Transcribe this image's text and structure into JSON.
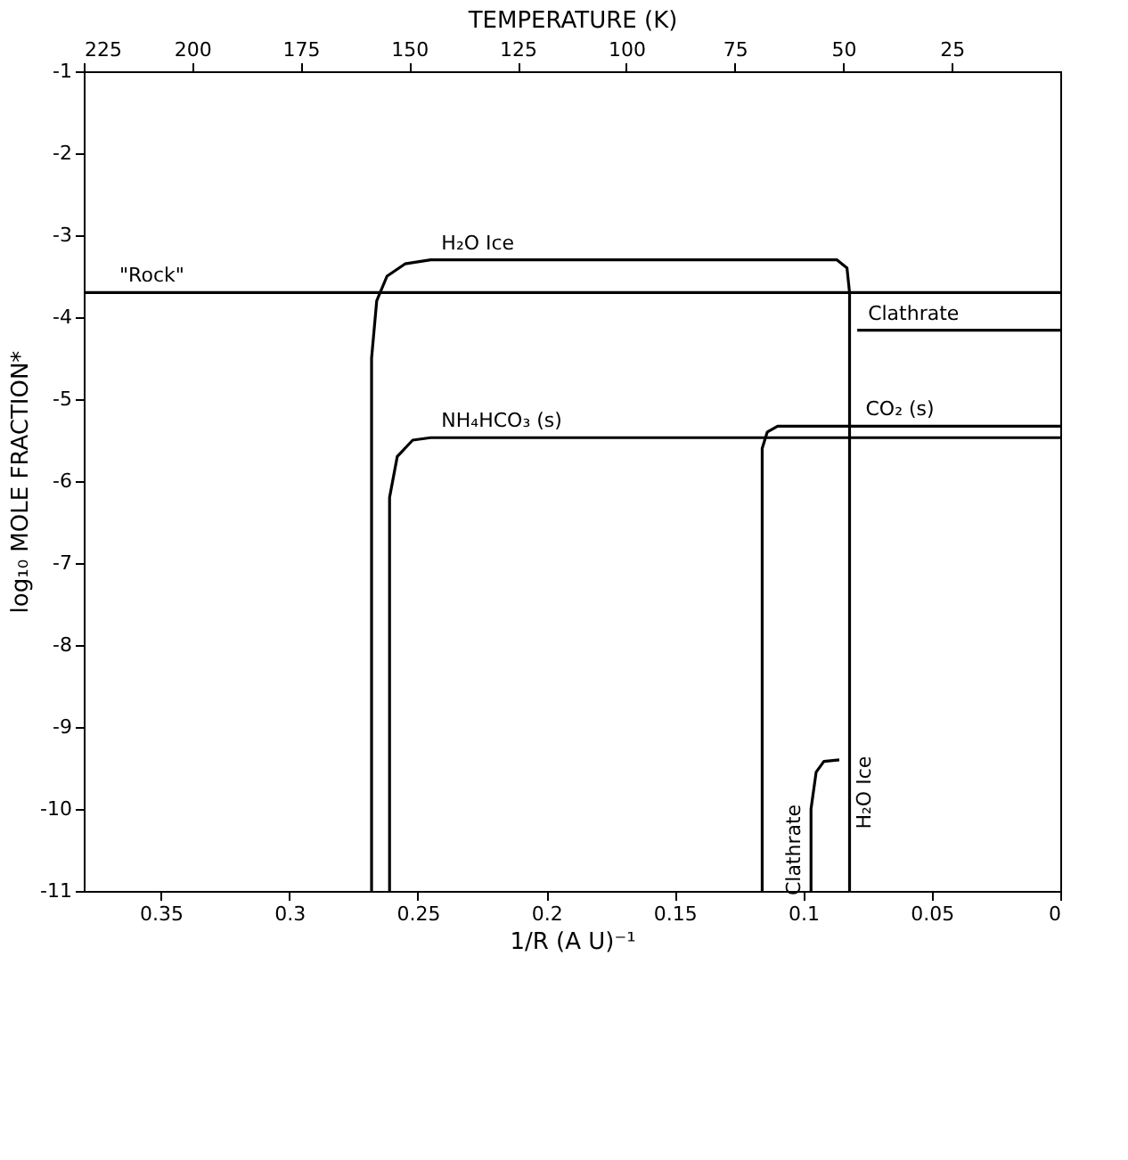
{
  "chart_data": {
    "type": "line",
    "xlabel": "1/R (A U)⁻¹",
    "ylabel": "log₁₀ MOLE FRACTION*",
    "x2label": "TEMPERATURE (K)",
    "xlim": [
      0.38,
      0
    ],
    "xticks": [
      0.35,
      0.3,
      0.25,
      0.2,
      0.15,
      0.1,
      0.05,
      0
    ],
    "ylim": [
      -11,
      -1
    ],
    "yticks": [
      -1,
      -2,
      -3,
      -4,
      -5,
      -6,
      -7,
      -8,
      -9,
      -10,
      -11
    ],
    "x2lim": [
      225,
      0
    ],
    "x2ticks": [
      225,
      200,
      175,
      150,
      125,
      100,
      75,
      50,
      25
    ],
    "grid": false,
    "legend": false,
    "line_style": "solid",
    "series": [
      {
        "name": "\"Rock\"",
        "color": "#000000",
        "x": [
          0.38,
          0
        ],
        "values": [
          -3.7,
          -3.7
        ]
      },
      {
        "name": "H₂O Ice",
        "color": "#000000",
        "x": [
          0.268,
          0.268,
          0.266,
          0.262,
          0.255,
          0.245,
          0.087,
          0.083,
          0.082,
          0.082
        ],
        "values": [
          -11,
          -4.5,
          -3.8,
          -3.5,
          -3.35,
          -3.3,
          -3.3,
          -3.4,
          -3.7,
          -11
        ]
      },
      {
        "name": "NH₄HCO₃ (s)",
        "color": "#000000",
        "x": [
          0.261,
          0.261,
          0.258,
          0.252,
          0.245,
          0
        ],
        "values": [
          -11,
          -6.2,
          -5.7,
          -5.5,
          -5.47,
          -5.47
        ]
      },
      {
        "name": "CO₂ (s)",
        "color": "#000000",
        "x": [
          0.116,
          0.116,
          0.114,
          0.11,
          0
        ],
        "values": [
          -11,
          -5.6,
          -5.4,
          -5.33,
          -5.33
        ]
      },
      {
        "name": "Clathrate",
        "color": "#000000",
        "x": [
          0.079,
          0
        ],
        "values": [
          -4.16,
          -4.16
        ]
      },
      {
        "name": "Clathrate",
        "color": "#000000",
        "x": [
          0.097,
          0.097,
          0.095,
          0.092,
          0.086
        ],
        "values": [
          -11,
          -10,
          -9.55,
          -9.42,
          -9.4
        ]
      }
    ]
  }
}
